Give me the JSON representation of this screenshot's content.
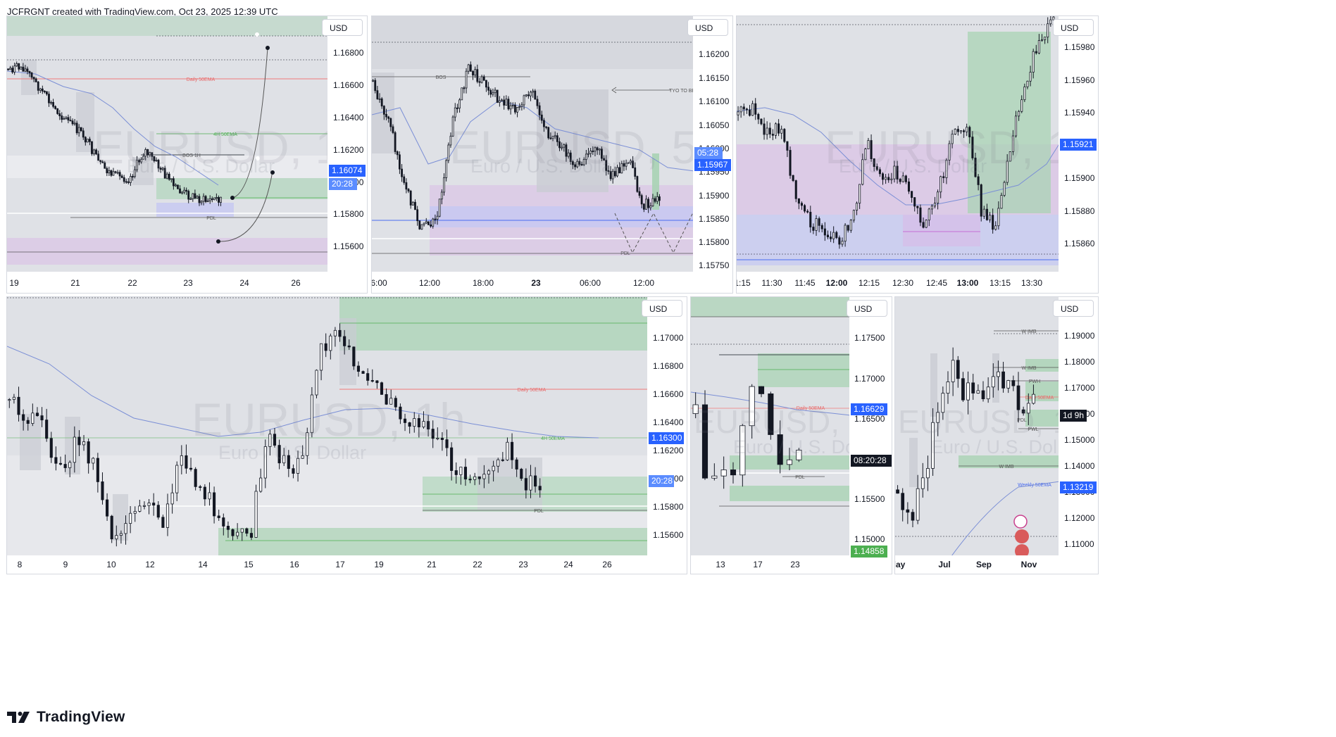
{
  "header": {
    "attribution": "JCFRGNT created with TradingView.com, Oct 23, 2025 12:39 UTC"
  },
  "footer": {
    "brand": "TradingView",
    "logo_icon": "tradingview-logo-icon"
  },
  "colors": {
    "plot_bg": "#dfe1e6",
    "up_candle": "#ffffff",
    "down_candle": "#131722",
    "ema": "#7b8fd6",
    "blue_tag": "#2962ff",
    "green_zone": "#a9d3b4",
    "purple_zone": "#d9b9e6",
    "lavender_zone": "#c5c8f2",
    "dark_tag": "#131722",
    "green_tag": "#4caf50"
  },
  "charts": [
    {
      "id": "top-left",
      "currency_button": "USD",
      "watermark": {
        "symbol": "EURUSD, 1h",
        "description": "Euro / U.S. Dollar"
      },
      "price_labels": [
        "1.16800",
        "1.16600",
        "1.16400",
        "1.16200",
        "1.16000",
        "1.15800",
        "1.15600"
      ],
      "time_labels": [
        "19",
        "21",
        "22",
        "23",
        "24",
        "26"
      ],
      "tags": [
        {
          "kind": "price",
          "text": "1.16074"
        },
        {
          "kind": "countdown",
          "text": "20:28"
        }
      ],
      "annotations": [
        "Daily 50EMA",
        "4H 50EMA",
        "BOS 1H",
        "PDL"
      ]
    },
    {
      "id": "top-middle",
      "currency_button": "USD",
      "watermark": {
        "symbol": "EURUSD, 5m",
        "description": "Euro / U.S. Dollar"
      },
      "price_labels": [
        "1.16200",
        "1.16150",
        "1.16100",
        "1.16050",
        "1.16000",
        "1.15950",
        "1.15900",
        "1.15850",
        "1.15800",
        "1.15750"
      ],
      "time_labels": [
        "6:00",
        "12:00",
        "18:00",
        "23",
        "06:00",
        "12:00"
      ],
      "tags": [
        {
          "kind": "countdown",
          "text": "05:28"
        },
        {
          "kind": "price",
          "text": "1.15967"
        }
      ],
      "annotations": [
        "BOS",
        "TYO TO BE",
        "PDL"
      ]
    },
    {
      "id": "top-right",
      "currency_button": "USD",
      "watermark": {
        "symbol": "EURUSD, 1m",
        "description": "Euro / U.S. Dollar"
      },
      "price_labels": [
        "1.15980",
        "1.15960",
        "1.15940",
        "1.15920",
        "1.15900",
        "1.15880",
        "1.15860",
        "1.15840"
      ],
      "time_labels": [
        "1:15",
        "11:30",
        "11:45",
        "12:00",
        "12:15",
        "12:30",
        "12:45",
        "13:00",
        "13:15",
        "13:30"
      ],
      "tags": [
        {
          "kind": "price",
          "text": "1.15921"
        }
      ],
      "annotations": []
    },
    {
      "id": "bottom-left",
      "currency_button": "USD",
      "watermark": {
        "symbol": "EURUSD, 1h",
        "description": "Euro / U.S. Dollar"
      },
      "price_labels": [
        "1.17000",
        "1.16800",
        "1.16600",
        "1.16400",
        "1.16200",
        "1.16000",
        "1.15800",
        "1.15600"
      ],
      "time_labels": [
        "8",
        "9",
        "10",
        "12",
        "14",
        "15",
        "16",
        "17",
        "19",
        "21",
        "22",
        "23",
        "24",
        "26"
      ],
      "tags": [
        {
          "kind": "price",
          "text": "1.16300"
        },
        {
          "kind": "countdown",
          "text": "20:28"
        }
      ],
      "annotations": [
        "Daily 50EMA",
        "4H 50EMA",
        "PDL"
      ]
    },
    {
      "id": "bottom-middle",
      "currency_button": "USD",
      "watermark": {
        "symbol": "EURUSD, 1D",
        "description": "Euro / U.S. Dollar"
      },
      "price_labels": [
        "1.17500",
        "1.17000",
        "1.16500",
        "1.16000",
        "1.15500",
        "1.15000"
      ],
      "time_labels": [
        "13",
        "17",
        "23"
      ],
      "tags": [
        {
          "kind": "price",
          "text": "1.16629"
        },
        {
          "kind": "countdown",
          "text": "08:20:28"
        },
        {
          "kind": "green",
          "text": "1.14858"
        }
      ],
      "annotations": [
        "Daily 50EMA",
        "PDL"
      ]
    },
    {
      "id": "bottom-right",
      "currency_button": "USD",
      "watermark": {
        "symbol": "EURUSD, 1W",
        "description": "Euro / U.S. Dollar"
      },
      "price_labels": [
        "1.19000",
        "1.18000",
        "1.17000",
        "1.16000",
        "1.15000",
        "1.14000",
        "1.13000",
        "1.12000",
        "1.11000"
      ],
      "time_labels": [
        "lay",
        "Jul",
        "Sep",
        "Nov"
      ],
      "tags": [
        {
          "kind": "dark",
          "text": "1d 9h"
        },
        {
          "kind": "price",
          "text": "1.13219"
        }
      ],
      "annotations": [
        "W IMB",
        "W IMB",
        "PWH",
        "Daily 50EMA",
        "PWL",
        "PDL",
        "W IMB",
        "Weekly 50EMA"
      ],
      "event_icons": [
        "lightning-event-icon",
        "globe-event-icon",
        "us-flag-event-icon"
      ]
    }
  ],
  "chart_data": [
    {
      "type": "candlestick",
      "title": "",
      "instrument": "EURUSD",
      "interval": "1h",
      "ylim": [
        1.155,
        1.169
      ],
      "x": [
        "19",
        "21",
        "22",
        "23",
        "24",
        "26"
      ],
      "levels": [
        {
          "name": "Daily 50EMA",
          "value": 1.1664
        },
        {
          "name": "4H 50EMA",
          "value": 1.1629
        },
        {
          "name": "BOS 1H",
          "value": 1.1619
        },
        {
          "name": "PDL",
          "value": 1.1579
        }
      ],
      "last_price": 1.16074,
      "closes_approx": [
        1.1673,
        1.1664,
        1.1645,
        1.163,
        1.162,
        1.16,
        1.1612,
        1.1597,
        1.1603,
        1.1607
      ],
      "projection_targets": [
        1.1683,
        1.161,
        1.1562
      ]
    },
    {
      "type": "candlestick",
      "title": "",
      "instrument": "EURUSD",
      "interval": "5m",
      "ylim": [
        1.1573,
        1.1624
      ],
      "x": [
        "6:00",
        "12:00",
        "18:00",
        "23",
        "06:00",
        "12:00"
      ],
      "levels": [
        {
          "name": "BOS",
          "value": 1.1615
        },
        {
          "name": "TYO TO BE",
          "value": 1.16125
        },
        {
          "name": "PDL",
          "value": 1.15775
        }
      ],
      "last_price": 1.15967
    },
    {
      "type": "candlestick",
      "title": "",
      "instrument": "EURUSD",
      "interval": "1m",
      "ylim": [
        1.1584,
        1.15995
      ],
      "x": [
        "1:15",
        "11:30",
        "11:45",
        "12:00",
        "12:15",
        "12:30",
        "12:45",
        "13:00",
        "13:15",
        "13:30"
      ],
      "last_price": 1.15921,
      "closes_approx": [
        1.15935,
        1.15938,
        1.15922,
        1.1588,
        1.15868,
        1.15875,
        1.1588,
        1.15898,
        1.1589,
        1.1587,
        1.15905,
        1.1592,
        1.15885,
        1.15875,
        1.1599
      ]
    },
    {
      "type": "candlestick",
      "title": "",
      "instrument": "EURUSD",
      "interval": "1h",
      "ylim": [
        1.155,
        1.172
      ],
      "x": [
        "8",
        "9",
        "10",
        "12",
        "14",
        "15",
        "16",
        "17",
        "19",
        "21",
        "22",
        "23",
        "24",
        "26"
      ],
      "levels": [
        {
          "name": "Daily 50EMA",
          "value": 1.1662
        },
        {
          "name": "4H 50EMA",
          "value": 1.163
        },
        {
          "name": "PDL",
          "value": 1.1577
        }
      ],
      "last_price": 1.163
    },
    {
      "type": "candlestick",
      "title": "",
      "instrument": "EURUSD",
      "interval": "1D",
      "ylim": [
        1.147,
        1.179
      ],
      "x": [
        "13",
        "17",
        "23"
      ],
      "levels": [
        {
          "name": "Daily 50EMA",
          "value": 1.1665
        },
        {
          "name": "PDL",
          "value": 1.1578
        }
      ],
      "last_price": 1.16629,
      "marked_price": 1.14858
    },
    {
      "type": "candlestick",
      "title": "",
      "instrument": "EURUSD",
      "interval": "1W",
      "ylim": [
        1.105,
        1.193
      ],
      "x": [
        "lay",
        "Jul",
        "Sep",
        "Nov"
      ],
      "levels": [
        {
          "name": "W IMB",
          "value": 1.191
        },
        {
          "name": "W IMB",
          "value": 1.178
        },
        {
          "name": "PWH",
          "value": 1.173
        },
        {
          "name": "Daily 50EMA",
          "value": 1.1665
        },
        {
          "name": "PWL",
          "value": 1.1572
        },
        {
          "name": "PDL",
          "value": 1.159
        },
        {
          "name": "W IMB",
          "value": 1.1395
        },
        {
          "name": "Weekly 50EMA",
          "value": 1.1305
        }
      ],
      "last_price": 1.13219
    }
  ]
}
